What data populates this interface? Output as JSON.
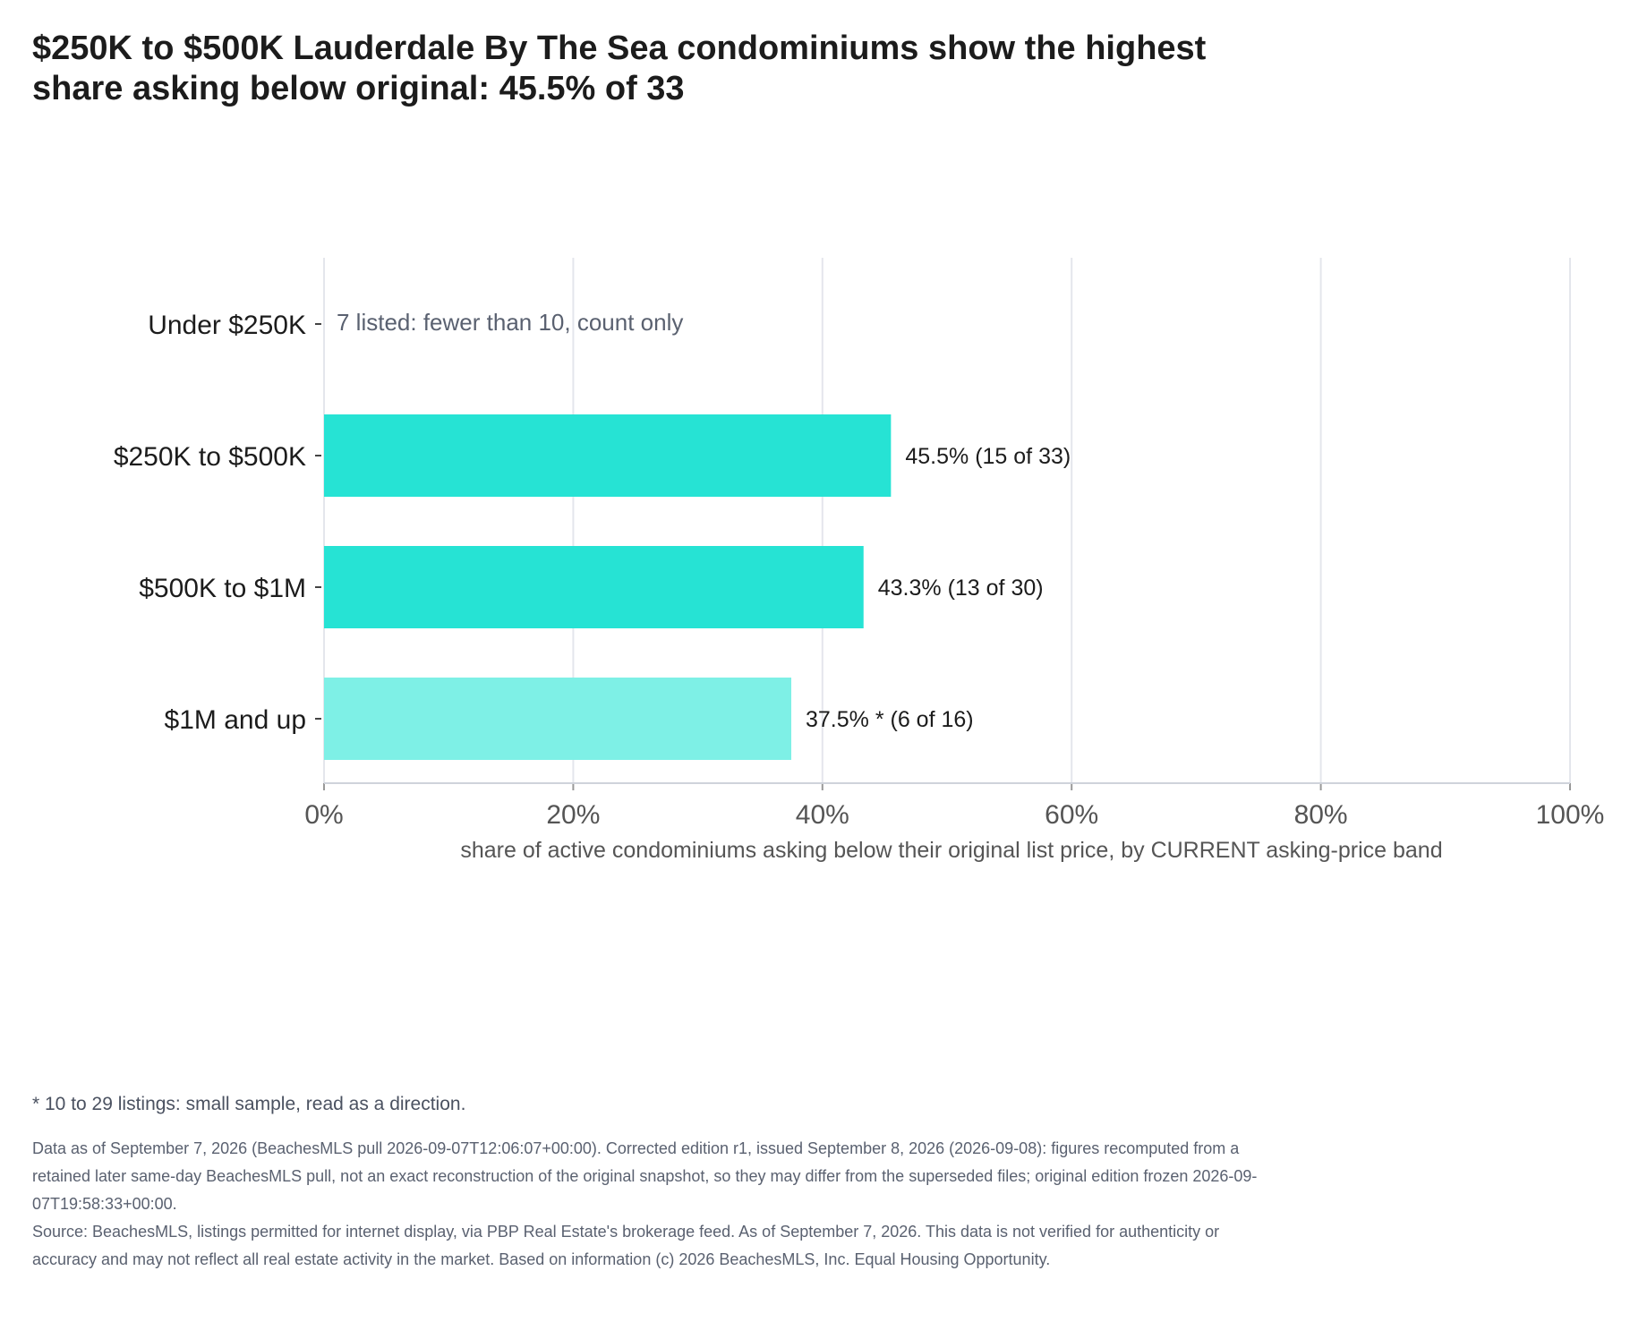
{
  "title": "$250K to $500K Lauderdale By The Sea condominiums show the highest share asking below original: 45.5% of 33",
  "chart_data": {
    "type": "bar",
    "orientation": "horizontal",
    "categories": [
      "Under $250K",
      "$250K to $500K",
      "$500K to $1M",
      "$1M and up"
    ],
    "values": [
      null,
      45.5,
      43.3,
      37.5
    ],
    "counts": [
      {
        "num": null,
        "den": 7
      },
      {
        "num": 15,
        "den": 33
      },
      {
        "num": 13,
        "den": 30
      },
      {
        "num": 6,
        "den": 16
      }
    ],
    "bar_labels": [
      "",
      "45.5%  (15 of 33)",
      "43.3%  (13 of 30)",
      "37.5% *  (6 of 16)"
    ],
    "notes": [
      "7 listed: fewer than 10, count only",
      "",
      "",
      ""
    ],
    "small_sample": [
      false,
      false,
      false,
      true
    ],
    "xlabel": "share of active condominiums asking below their original list price, by CURRENT asking-price band",
    "ylabel": "",
    "xlim": [
      0,
      100
    ],
    "xticks": [
      0,
      20,
      40,
      60,
      80,
      100
    ],
    "xtick_labels": [
      "0%",
      "20%",
      "40%",
      "60%",
      "80%",
      "100%"
    ],
    "grid": true,
    "colors": {
      "main": "#26e3d4",
      "small_sample": "#7ef0e6",
      "grid": "#e4e6ec",
      "axis": "#cfd3db"
    }
  },
  "footnote": "* 10 to 29 listings: small sample, read as a direction.",
  "data_note": "Data as of September 7, 2026 (BeachesMLS pull 2026-09-07T12:06:07+00:00). Corrected edition r1, issued September 8, 2026 (2026-09-08): figures recomputed from a retained later same-day BeachesMLS pull, not an exact reconstruction of the original snapshot, so they may differ from the superseded files; original edition frozen 2026-09-07T19:58:33+00:00.",
  "source_note": "Source: BeachesMLS, listings permitted for internet display, via PBP Real Estate's brokerage feed. As of September 7, 2026. This data is not verified for authenticity or accuracy and may not reflect all real estate activity in the market. Based on information (c) 2026 BeachesMLS, Inc. Equal Housing Opportunity."
}
